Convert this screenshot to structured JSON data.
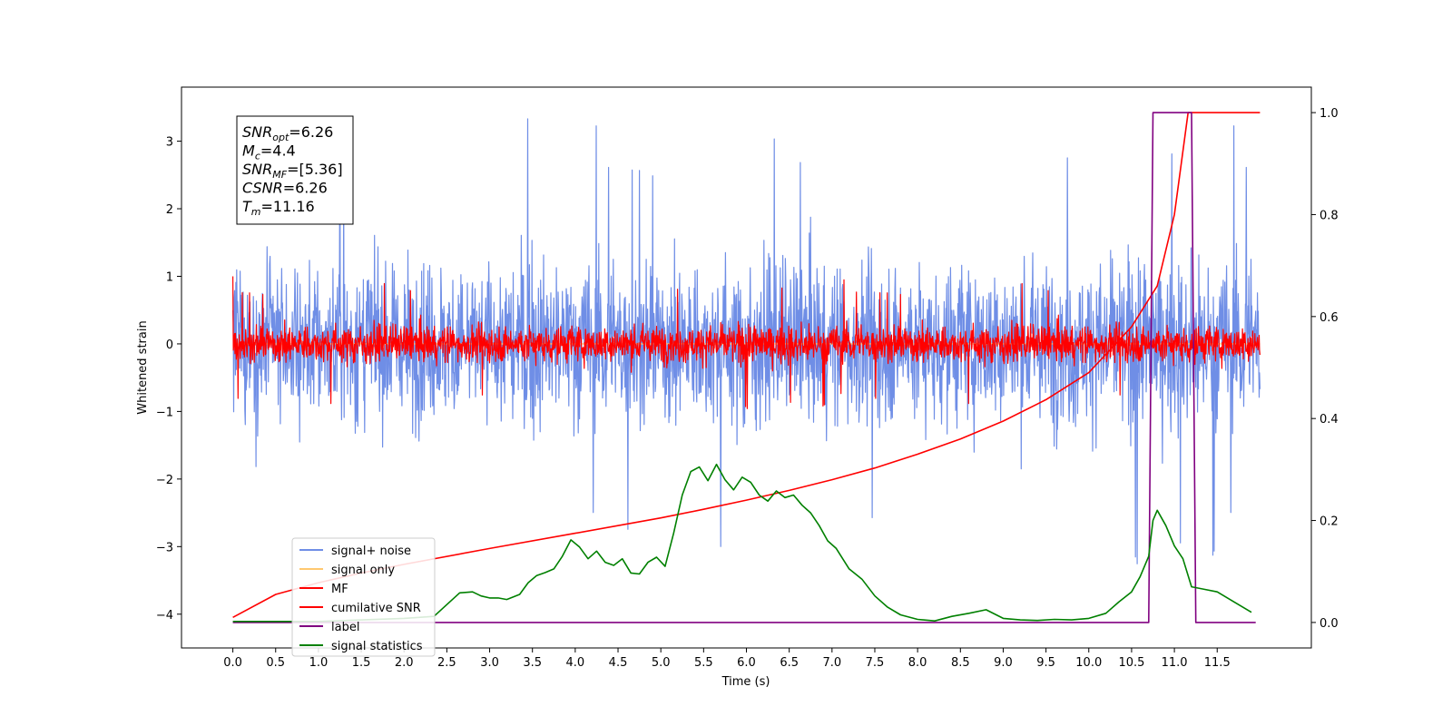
{
  "chart_data": {
    "type": "line",
    "title": "",
    "xlabel": "Time (s)",
    "ylabel": "Whitened strain",
    "xlim": [
      -0.6,
      12.6
    ],
    "ylim": [
      -4.5,
      3.8
    ],
    "y2lim": [
      -0.05,
      1.05
    ],
    "grid": false,
    "legend_position": "lower-left",
    "x_ticks": [
      "0.0",
      "0.5",
      "1.0",
      "1.5",
      "2.0",
      "2.5",
      "3.0",
      "3.5",
      "4.0",
      "4.5",
      "5.0",
      "5.5",
      "6.0",
      "6.5",
      "7.0",
      "7.5",
      "8.0",
      "8.5",
      "9.0",
      "9.5",
      "10.0",
      "10.5",
      "11.0",
      "11.5"
    ],
    "y_ticks": [
      "−4",
      "−3",
      "−2",
      "−1",
      "0",
      "1",
      "2",
      "3"
    ],
    "y2_ticks": [
      "0.0",
      "0.2",
      "0.4",
      "0.6",
      "0.8",
      "1.0"
    ],
    "annotation": [
      {
        "base": "SNR",
        "sub": "opt",
        "value": "=6.26"
      },
      {
        "base": "M",
        "sub": "c",
        "value": "=4.4"
      },
      {
        "base": "SNR",
        "sub": "MF",
        "value": "=[5.36]"
      },
      {
        "base": "CSNR",
        "sub": "",
        "value": "=6.26"
      },
      {
        "base": "T",
        "sub": "m",
        "value": "=11.16"
      }
    ],
    "series": [
      {
        "name": "signal+ noise",
        "axis": "left",
        "color": "#6f8ee6",
        "style": "noise",
        "x_range": [
          0,
          12
        ],
        "amplitude": 1.1,
        "peak": 3.4
      },
      {
        "name": "signal only",
        "axis": "left",
        "color": "#ffc870",
        "style": "flat",
        "x_range": [
          0,
          12
        ],
        "value": 0
      },
      {
        "name": "MF",
        "axis": "left",
        "color": "#ff0000",
        "style": "noise",
        "x_range": [
          0,
          12
        ],
        "amplitude": 0.25,
        "peak": 1.0
      },
      {
        "name": "cumilative SNR",
        "axis": "right",
        "color": "#ff0000",
        "x": [
          0,
          0.5,
          1,
          1.5,
          2,
          3,
          4,
          5,
          5.5,
          6,
          6.5,
          7,
          7.5,
          8,
          8.5,
          9,
          9.5,
          10,
          10.5,
          10.8,
          11,
          11.16,
          12
        ],
        "y": [
          0.01,
          0.055,
          0.078,
          0.097,
          0.114,
          0.145,
          0.175,
          0.205,
          0.222,
          0.24,
          0.259,
          0.28,
          0.303,
          0.33,
          0.36,
          0.395,
          0.437,
          0.49,
          0.58,
          0.66,
          0.8,
          1.0,
          1.0
        ]
      },
      {
        "name": "label",
        "axis": "right",
        "color": "#800080",
        "x": [
          0,
          10.7,
          10.75,
          11.2,
          11.25,
          11.95
        ],
        "y": [
          0,
          0,
          1,
          1,
          0,
          0
        ]
      },
      {
        "name": "signal statistics",
        "axis": "right",
        "color": "#008000",
        "x": [
          0,
          1.0,
          2.0,
          2.35,
          2.5,
          2.65,
          2.8,
          2.9,
          3.0,
          3.1,
          3.2,
          3.35,
          3.45,
          3.55,
          3.65,
          3.75,
          3.85,
          3.95,
          4.05,
          4.15,
          4.25,
          4.35,
          4.45,
          4.55,
          4.65,
          4.75,
          4.85,
          4.95,
          5.05,
          5.15,
          5.25,
          5.35,
          5.45,
          5.55,
          5.65,
          5.75,
          5.85,
          5.95,
          6.05,
          6.15,
          6.25,
          6.35,
          6.45,
          6.55,
          6.65,
          6.75,
          6.85,
          6.95,
          7.05,
          7.2,
          7.35,
          7.5,
          7.65,
          7.8,
          8.0,
          8.2,
          8.4,
          8.6,
          8.8,
          9.0,
          9.2,
          9.4,
          9.6,
          9.8,
          10.0,
          10.2,
          10.35,
          10.5,
          10.6,
          10.7,
          10.75,
          10.8,
          10.9,
          11.0,
          11.1,
          11.2,
          11.35,
          11.5,
          11.7,
          11.9
        ],
        "y": [
          0.002,
          0.002,
          0.008,
          0.012,
          0.035,
          0.058,
          0.06,
          0.052,
          0.048,
          0.048,
          0.045,
          0.055,
          0.078,
          0.092,
          0.098,
          0.105,
          0.13,
          0.162,
          0.148,
          0.125,
          0.14,
          0.118,
          0.112,
          0.125,
          0.097,
          0.095,
          0.118,
          0.128,
          0.11,
          0.175,
          0.25,
          0.296,
          0.305,
          0.278,
          0.31,
          0.28,
          0.26,
          0.285,
          0.275,
          0.25,
          0.238,
          0.258,
          0.245,
          0.25,
          0.23,
          0.215,
          0.19,
          0.16,
          0.145,
          0.105,
          0.085,
          0.052,
          0.03,
          0.015,
          0.006,
          0.003,
          0.012,
          0.018,
          0.025,
          0.008,
          0.005,
          0.004,
          0.006,
          0.005,
          0.008,
          0.018,
          0.04,
          0.06,
          0.09,
          0.13,
          0.2,
          0.22,
          0.19,
          0.15,
          0.125,
          0.07,
          0.065,
          0.06,
          0.04,
          0.02
        ]
      }
    ]
  }
}
